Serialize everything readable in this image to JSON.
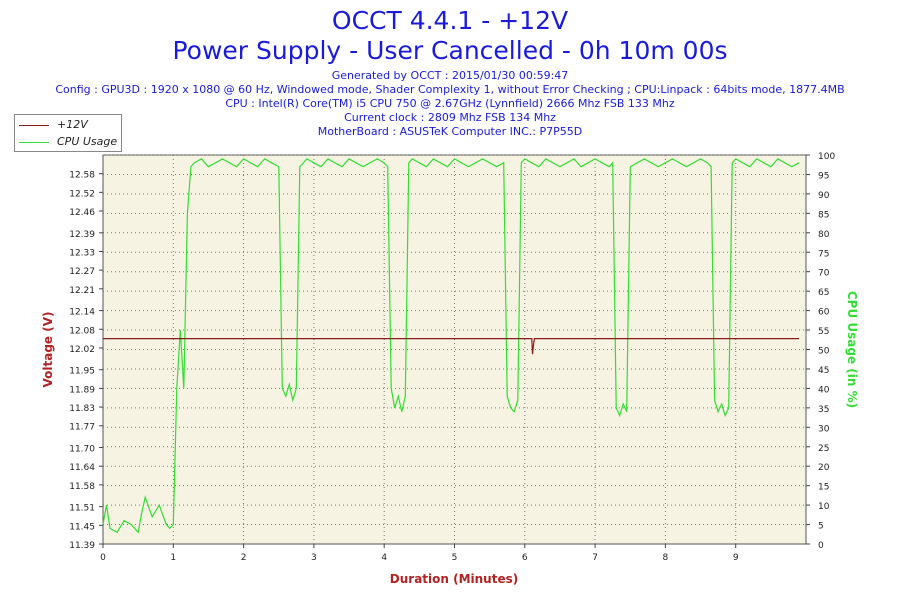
{
  "header": {
    "title": "OCCT 4.4.1 - +12V",
    "subtitle": "Power Supply - User Cancelled - 0h 10m 00s",
    "info_lines": [
      "Generated by OCCT : 2015/01/30 00:59:47",
      "Config : GPU3D : 1920 x 1080 @ 60 Hz, Windowed mode, Shader Complexity 1, without Error Checking ; CPU:Linpack : 64bits mode, 1877.4MB",
      "CPU : Intel(R) Core(TM) i5 CPU 750 @ 2.67GHz (Lynnfield) 2666 Mhz FSB 133 Mhz",
      "Current clock : 2809 Mhz FSB 134 Mhz",
      "MotherBoard : ASUSTeK Computer INC.: P7P55D"
    ]
  },
  "colors": {
    "voltage": "#8b1a1a",
    "cpu": "#33dd33",
    "plot_bg": "#f7f3e3",
    "text": "#1a1adb",
    "axis_label": "#b22222"
  },
  "chart_data": {
    "type": "line",
    "xlabel": "Duration (Minutes)",
    "ylabel_left": "Voltage (V)",
    "ylabel_right": "CPU Usage (in %)",
    "xlim": [
      0,
      10
    ],
    "ylim_left": [
      11.39,
      12.64
    ],
    "ylim_right": [
      0,
      100
    ],
    "x_ticks": [
      "0",
      "1",
      "2",
      "3",
      "4",
      "5",
      "6",
      "7",
      "8",
      "9"
    ],
    "y_ticks_left": [
      "11.39",
      "11.45",
      "11.51",
      "11.58",
      "11.64",
      "11.70",
      "11.77",
      "11.83",
      "11.89",
      "11.95",
      "12.02",
      "12.08",
      "12.14",
      "12.21",
      "12.27",
      "12.33",
      "12.39",
      "12.46",
      "12.52",
      "12.58"
    ],
    "y_ticks_right": [
      "0",
      "5",
      "10",
      "15",
      "20",
      "25",
      "30",
      "35",
      "40",
      "45",
      "50",
      "55",
      "60",
      "65",
      "70",
      "75",
      "80",
      "85",
      "90",
      "95",
      "100"
    ],
    "grid": true,
    "legend_position": "top-left",
    "series": [
      {
        "name": "+12V",
        "axis": "left",
        "x": [
          0,
          6.1,
          6.11,
          6.13,
          6.14,
          6.2,
          9.9
        ],
        "y": [
          12.05,
          12.05,
          12.0,
          12.04,
          12.05,
          12.05,
          12.05
        ]
      },
      {
        "name": "CPU Usage",
        "axis": "right",
        "x": [
          0,
          0.05,
          0.1,
          0.2,
          0.3,
          0.4,
          0.5,
          0.55,
          0.6,
          0.7,
          0.8,
          0.9,
          0.95,
          1.0,
          1.05,
          1.1,
          1.15,
          1.2,
          1.25,
          1.3,
          1.4,
          1.5,
          1.6,
          1.7,
          1.8,
          1.9,
          2.0,
          2.1,
          2.2,
          2.3,
          2.4,
          2.5,
          2.55,
          2.6,
          2.65,
          2.7,
          2.75,
          2.8,
          2.85,
          2.9,
          3.0,
          3.1,
          3.2,
          3.3,
          3.4,
          3.5,
          3.6,
          3.7,
          3.8,
          3.9,
          4.0,
          4.05,
          4.1,
          4.15,
          4.2,
          4.25,
          4.3,
          4.35,
          4.4,
          4.5,
          4.6,
          4.7,
          4.8,
          4.9,
          5.0,
          5.1,
          5.2,
          5.3,
          5.4,
          5.5,
          5.6,
          5.7,
          5.75,
          5.8,
          5.85,
          5.9,
          5.95,
          6.0,
          6.1,
          6.2,
          6.3,
          6.4,
          6.5,
          6.6,
          6.7,
          6.8,
          6.9,
          7.0,
          7.1,
          7.2,
          7.25,
          7.3,
          7.35,
          7.4,
          7.45,
          7.5,
          7.6,
          7.7,
          7.8,
          7.9,
          8.0,
          8.1,
          8.2,
          8.3,
          8.4,
          8.5,
          8.6,
          8.65,
          8.7,
          8.75,
          8.8,
          8.85,
          8.9,
          8.95,
          9.0,
          9.1,
          9.2,
          9.3,
          9.4,
          9.5,
          9.6,
          9.7,
          9.8,
          9.9
        ],
        "y": [
          5,
          10,
          4,
          3,
          6,
          5,
          3,
          8,
          12,
          7,
          10,
          5,
          4,
          5,
          40,
          55,
          40,
          85,
          97,
          98,
          99,
          97,
          98,
          99,
          98,
          97,
          99,
          98,
          97,
          99,
          98,
          97,
          40,
          38,
          41,
          37,
          40,
          97,
          98,
          99,
          98,
          97,
          99,
          98,
          97,
          99,
          98,
          97,
          98,
          99,
          98,
          97,
          40,
          35,
          38,
          34,
          38,
          98,
          99,
          98,
          97,
          99,
          98,
          97,
          99,
          98,
          97,
          98,
          99,
          98,
          97,
          98,
          38,
          35,
          34,
          37,
          98,
          99,
          98,
          97,
          99,
          98,
          97,
          98,
          99,
          97,
          98,
          99,
          98,
          97,
          98,
          35,
          33,
          36,
          34,
          97,
          98,
          99,
          98,
          97,
          98,
          99,
          98,
          97,
          98,
          99,
          98,
          97,
          37,
          34,
          36,
          33,
          35,
          98,
          99,
          98,
          97,
          99,
          98,
          97,
          99,
          98,
          97,
          98
        ]
      }
    ]
  }
}
